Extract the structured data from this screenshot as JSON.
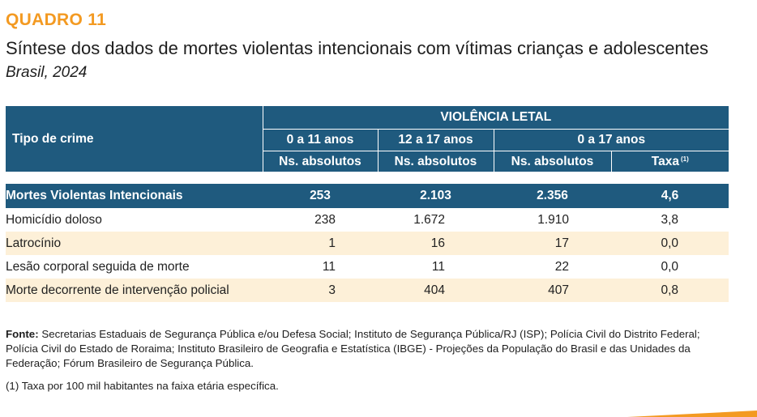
{
  "header": {
    "label": "QUADRO 11",
    "title": "Síntese dos dados de mortes violentas intencionais com vítimas crianças e adolescentes",
    "subtitle": "Brasil, 2024"
  },
  "table": {
    "group_header": "VIOLÊNCIA LETAL",
    "row_header": "Tipo de crime",
    "age_groups": [
      "0 a 11 anos",
      "12 a 17 anos",
      "0 a 17 anos"
    ],
    "units": [
      "Ns. absolutos",
      "Ns. absolutos",
      "Ns. absolutos",
      "Taxa"
    ],
    "taxa_note_marker": "(1)",
    "total_row": {
      "label": "Mortes Violentas Intencionais",
      "values": [
        "253",
        "2.103",
        "2.356",
        "4,6"
      ]
    },
    "rows": [
      {
        "label": "Homicídio doloso",
        "values": [
          "238",
          "1.672",
          "1.910",
          "3,8"
        ]
      },
      {
        "label": "Latrocínio",
        "values": [
          "1",
          "16",
          "17",
          "0,0"
        ]
      },
      {
        "label": "Lesão corporal seguida de morte",
        "values": [
          "11",
          "11",
          "22",
          "0,0"
        ]
      },
      {
        "label": "Morte decorrente de intervenção policial",
        "values": [
          "3",
          "404",
          "407",
          "0,8"
        ]
      }
    ]
  },
  "source": {
    "label": "Fonte:",
    "text": " Secretarias Estaduais de Segurança Pública e/ou Defesa Social; Instituto de Segurança Pública/RJ (ISP); Polícia Civil do Distrito Federal; Polícia Civil do Estado de Roraima; Instituto Brasileiro de Geografia e Estatística (IBGE) - Projeções da População do Brasil e das Unidades da Federação; Fórum Brasileiro de Segurança Pública."
  },
  "footnote": "(1) Taxa por 100 mil habitantes na faixa etária específica.",
  "colors": {
    "accent": "#f39a22",
    "header_bg": "#1f5a7e",
    "row_alt_bg": "#fdf0d8"
  }
}
